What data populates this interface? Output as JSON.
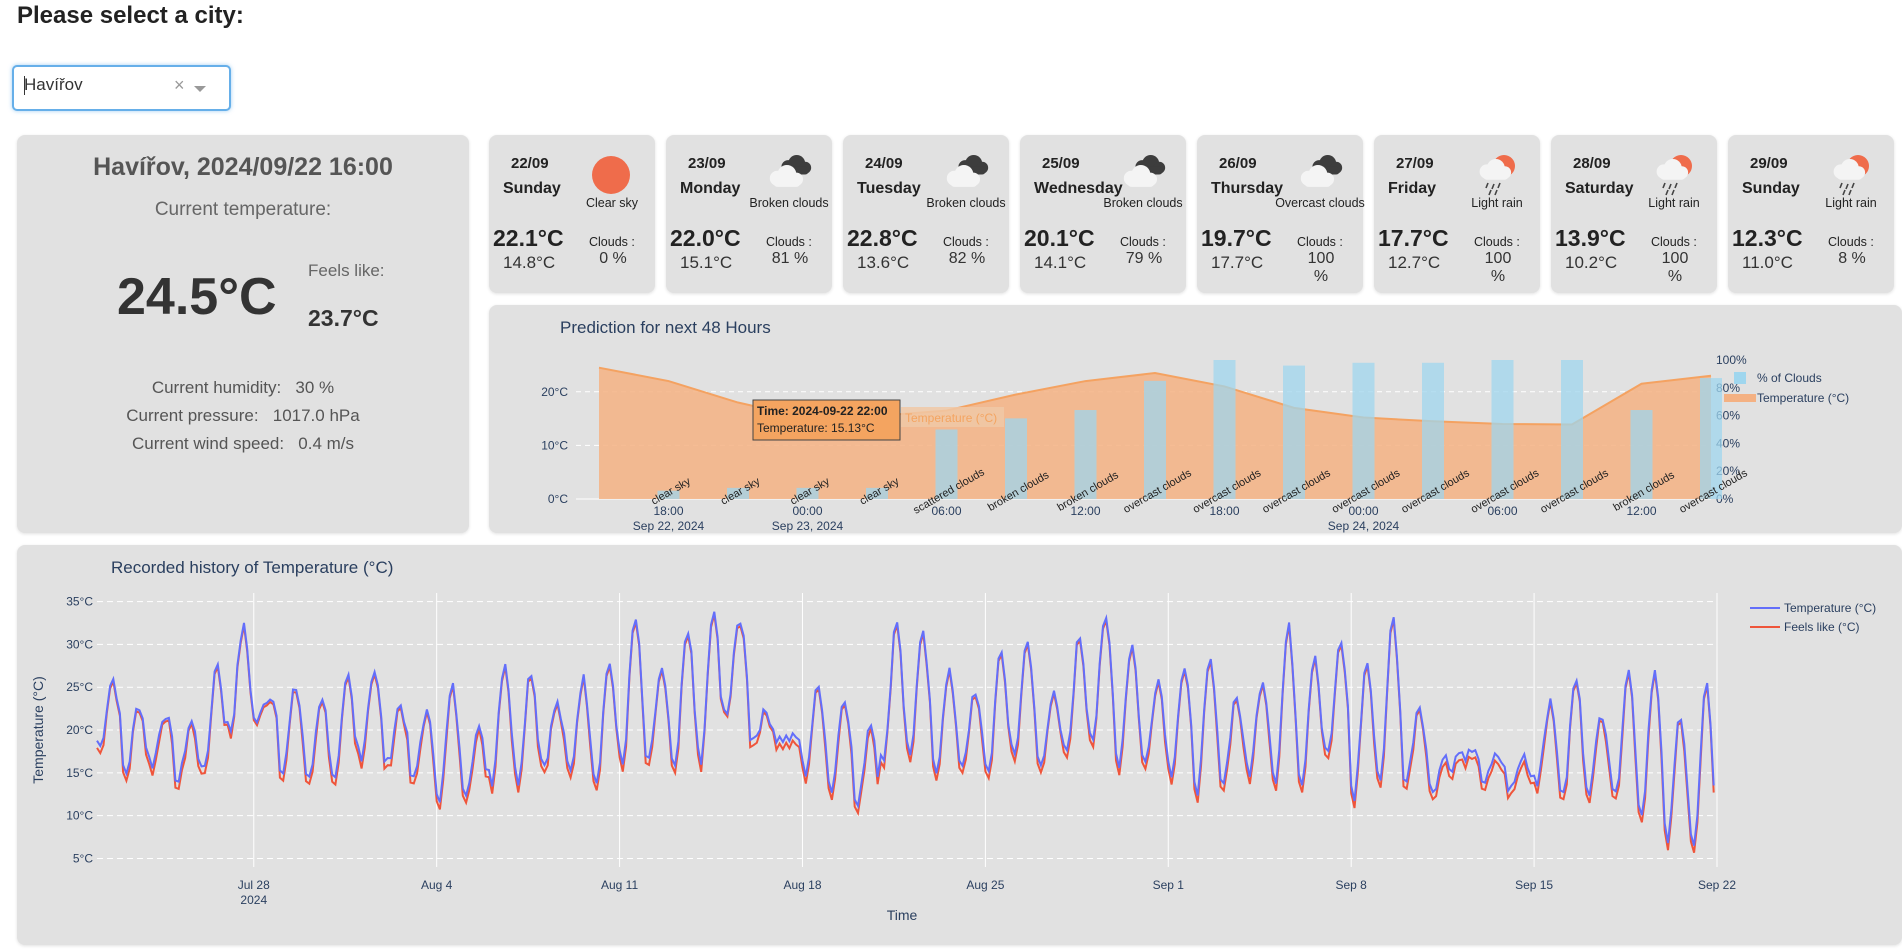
{
  "header": {
    "title": "Please select a city:"
  },
  "city_select": {
    "value": "Havířov",
    "clear_glyph": "×"
  },
  "current": {
    "title": "Havířov, 2024/09/22 16:00",
    "temp_label": "Current temperature:",
    "temp": "24.5°C",
    "feels_label": "Feels like:",
    "feels": "23.7°C",
    "humidity_label": "Current humidity:",
    "humidity": "30 %",
    "pressure_label": "Current pressure:",
    "pressure": "1017.0 hPa",
    "wind_label": "Current wind speed:",
    "wind": "0.4 m/s"
  },
  "forecast": [
    {
      "date": "22/09",
      "day": "Sunday",
      "cond": "Clear sky",
      "icon": "sun-icon",
      "hi": "22.1°C",
      "lo": "14.8°C",
      "clouds_label": "Clouds :",
      "clouds": "0 %"
    },
    {
      "date": "23/09",
      "day": "Monday",
      "cond": "Broken clouds",
      "icon": "broken-clouds-icon",
      "hi": "22.0°C",
      "lo": "15.1°C",
      "clouds_label": "Clouds :",
      "clouds": "81 %"
    },
    {
      "date": "24/09",
      "day": "Tuesday",
      "cond": "Broken clouds",
      "icon": "broken-clouds-icon",
      "hi": "22.8°C",
      "lo": "13.6°C",
      "clouds_label": "Clouds :",
      "clouds": "82 %"
    },
    {
      "date": "25/09",
      "day": "Wednesday",
      "cond": "Broken clouds",
      "icon": "broken-clouds-icon",
      "hi": "20.1°C",
      "lo": "14.1°C",
      "clouds_label": "Clouds :",
      "clouds": "79 %"
    },
    {
      "date": "26/09",
      "day": "Thursday",
      "cond": "Overcast clouds",
      "icon": "overcast-clouds-icon",
      "hi": "19.7°C",
      "lo": "17.7°C",
      "clouds_label": "Clouds :",
      "clouds": "100 %"
    },
    {
      "date": "27/09",
      "day": "Friday",
      "cond": "Light rain",
      "icon": "light-rain-icon",
      "hi": "17.7°C",
      "lo": "12.7°C",
      "clouds_label": "Clouds :",
      "clouds": "100 %"
    },
    {
      "date": "28/09",
      "day": "Saturday",
      "cond": "Light rain",
      "icon": "light-rain-icon",
      "hi": "13.9°C",
      "lo": "10.2°C",
      "clouds_label": "Clouds :",
      "clouds": "100 %"
    },
    {
      "date": "29/09",
      "day": "Sunday",
      "cond": "Light rain",
      "icon": "light-rain-icon",
      "hi": "12.3°C",
      "lo": "11.0°C",
      "clouds_label": "Clouds :",
      "clouds": "8 %"
    }
  ],
  "colors": {
    "panel": "#e1e1e1",
    "temp_area": "#f4b183",
    "temp_line": "#f4a261",
    "clouds_bar": "#9fd6ee",
    "history_temp": "#636efa",
    "history_feels": "#ef553b",
    "tooltip": "#f4a460",
    "sun": "#ef6c4b"
  },
  "chart_data": [
    {
      "type": "bar",
      "title": "Prediction for next 48 Hours",
      "y_left_ticks": [
        "0°C",
        "10°C",
        "20°C"
      ],
      "y_left_range": [
        0,
        25
      ],
      "y_right_ticks": [
        "0%",
        "20%",
        "40%",
        "60%",
        "80%",
        "100%"
      ],
      "x_ticks": [
        {
          "label": "18:00",
          "sub": "Sep 22, 2024",
          "hour": 3
        },
        {
          "label": "00:00",
          "sub": "Sep 23, 2024",
          "hour": 9
        },
        {
          "label": "06:00",
          "sub": "",
          "hour": 15
        },
        {
          "label": "12:00",
          "sub": "",
          "hour": 21
        },
        {
          "label": "18:00",
          "sub": "",
          "hour": 27
        },
        {
          "label": "00:00",
          "sub": "Sep 24, 2024",
          "hour": 33
        },
        {
          "label": "06:00",
          "sub": "",
          "hour": 39
        },
        {
          "label": "12:00",
          "sub": "",
          "hour": 45
        }
      ],
      "legend": [
        "% of Clouds",
        "Temperature (°C)"
      ],
      "temperature_series": {
        "name": "Temperature (°C)",
        "hours": [
          0,
          3,
          6,
          9,
          12,
          15,
          18,
          21,
          24,
          27,
          30,
          33,
          36,
          39,
          42,
          45,
          48
        ],
        "values": [
          24.5,
          22.0,
          18.0,
          15.1,
          15.5,
          16.5,
          19.5,
          22.0,
          23.5,
          21.0,
          17.0,
          15.2,
          14.5,
          14.0,
          13.9,
          21.5,
          23.0
        ]
      },
      "clouds_series": {
        "name": "% of Clouds",
        "hours": [
          3,
          6,
          9,
          12,
          15,
          18,
          21,
          24,
          27,
          30,
          33,
          36,
          39,
          42,
          45,
          48
        ],
        "values": [
          6,
          8,
          8,
          8,
          50,
          58,
          64,
          85,
          100,
          96,
          98,
          98,
          100,
          100,
          64,
          87
        ]
      },
      "weather_labels": [
        "clear sky",
        "clear sky",
        "clear sky",
        "clear sky",
        "scattered clouds",
        "broken clouds",
        "broken clouds",
        "overcast clouds",
        "overcast clouds",
        "overcast clouds",
        "overcast clouds",
        "overcast clouds",
        "overcast clouds",
        "overcast clouds",
        "broken clouds",
        "overcast clouds"
      ],
      "tooltip": {
        "time": "Time: 2024-09-22 22:00",
        "temp": "Temperature: 15.13°C",
        "series": "Temperature (°C)"
      }
    },
    {
      "type": "line",
      "title": "Recorded history of Temperature (°C)",
      "xlabel": "Time",
      "ylabel": "Temperature (°C)",
      "ylim": [
        4,
        36
      ],
      "y_ticks": [
        "5°C",
        "10°C",
        "15°C",
        "20°C",
        "25°C",
        "30°C",
        "35°C"
      ],
      "x_range_days": [
        0,
        62
      ],
      "x_ticks": [
        {
          "label": "Jul 28",
          "sub": "2024",
          "day": 6
        },
        {
          "label": "Aug 4",
          "sub": "",
          "day": 13
        },
        {
          "label": "Aug 11",
          "sub": "",
          "day": 20
        },
        {
          "label": "Aug 18",
          "sub": "",
          "day": 27
        },
        {
          "label": "Aug 25",
          "sub": "",
          "day": 34
        },
        {
          "label": "Sep 1",
          "sub": "",
          "day": 41
        },
        {
          "label": "Sep 8",
          "sub": "",
          "day": 48
        },
        {
          "label": "Sep 15",
          "sub": "",
          "day": 55
        },
        {
          "label": "Sep 22",
          "sub": "",
          "day": 62
        }
      ],
      "series": [
        {
          "name": "Temperature (°C)",
          "daily_max": [
            26,
            23,
            22,
            21,
            28,
            32,
            24,
            25,
            24,
            26,
            27,
            23,
            22,
            25,
            20,
            28,
            27,
            23,
            26,
            28,
            33,
            27,
            32,
            34,
            33,
            22,
            19,
            25,
            24,
            21,
            33,
            31,
            27,
            24,
            29,
            30,
            24,
            31,
            33,
            30,
            26,
            27,
            28,
            24,
            26,
            32,
            29,
            30,
            28,
            33,
            23,
            17,
            17,
            17,
            17,
            23,
            26,
            22,
            27,
            27,
            22,
            25
          ],
          "daily_min": [
            18,
            15,
            16,
            14,
            15,
            20,
            21,
            15,
            14,
            14,
            17,
            16,
            14,
            12,
            13,
            14,
            14,
            16,
            15,
            14,
            16,
            16,
            15,
            16,
            22,
            19,
            19,
            15,
            13,
            11,
            16,
            17,
            15,
            16,
            15,
            17,
            16,
            17,
            19,
            16,
            16,
            15,
            13,
            14,
            15,
            14,
            14,
            17,
            12,
            14,
            14,
            13,
            17,
            14,
            13,
            14,
            12,
            13,
            12,
            10,
            7,
            6
          ]
        },
        {
          "name": "Feels like (°C)",
          "offset": -0.6
        }
      ]
    }
  ]
}
